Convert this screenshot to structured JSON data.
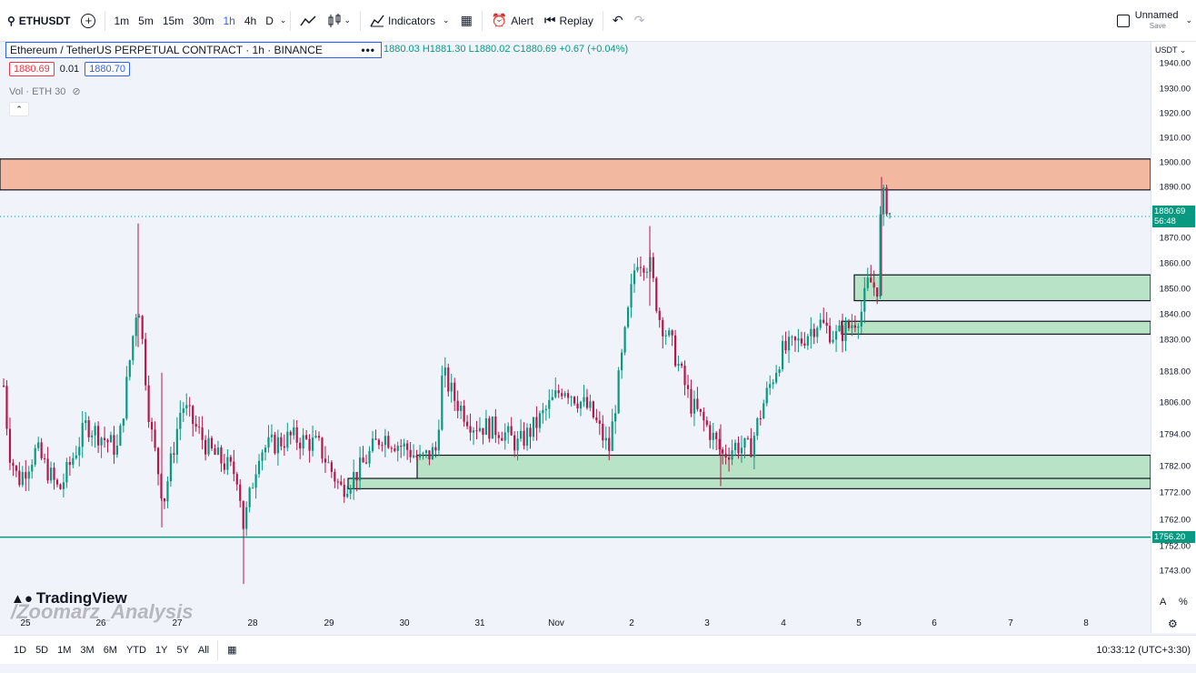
{
  "toolbar": {
    "symbol": "ETHUSDT",
    "intervals": [
      "1m",
      "5m",
      "15m",
      "30m",
      "1h",
      "4h",
      "D"
    ],
    "active_interval": "1h",
    "indicators_label": "Indicators",
    "alert_label": "Alert",
    "replay_label": "Replay",
    "layout_name": "Unnamed",
    "save_label": "Save"
  },
  "legend": {
    "title": "Ethereum / TetherUS PERPETUAL CONTRACT · 1h · BINANCE",
    "ohlc": "1880.03 H1881.30 L1880.02 C1880.69 +0.67 (+0.04%)",
    "bid": "1880.69",
    "spread": "0.01",
    "ask": "1880.70",
    "volume": "Vol · ETH 30"
  },
  "price_axis": {
    "currency": "USDT",
    "ticks": [
      "1940.00",
      "1930.00",
      "1920.00",
      "1910.00",
      "1900.00",
      "1890.00",
      "1870.00",
      "1860.00",
      "1850.00",
      "1840.00",
      "1830.00",
      "1818.00",
      "1806.00",
      "1794.00",
      "1782.00",
      "1772.00",
      "1762.00",
      "1752.00",
      "1743.00"
    ],
    "current_price": "1880.69",
    "countdown": "56:48",
    "line_price": "1756.20"
  },
  "time_axis": {
    "labels": [
      "25",
      "26",
      "27",
      "28",
      "29",
      "30",
      "31",
      "Nov",
      "2",
      "3",
      "4",
      "5",
      "6",
      "7",
      "8"
    ]
  },
  "bottom": {
    "ranges": [
      "1D",
      "5D",
      "1M",
      "3M",
      "6M",
      "YTD",
      "1Y",
      "5Y",
      "All"
    ],
    "clock": "10:33:12 (UTC+3:30)"
  },
  "watermark": {
    "brand": "TradingView",
    "author": "/Zoomarz_Analysis"
  },
  "colors": {
    "up": "#089981",
    "down": "#f23645",
    "supply_zone": "#f2b9a0",
    "demand_zone": "#b9e3c6",
    "support_line": "#089981"
  },
  "chart_data": {
    "type": "candlestick",
    "symbol": "ETHUSDT",
    "timeframe": "1h",
    "ylim": [
      1738,
      1945
    ],
    "x_labels": [
      "25",
      "26",
      "27",
      "28",
      "29",
      "30",
      "31",
      "Nov",
      "2",
      "3",
      "4",
      "5",
      "6",
      "7",
      "8"
    ],
    "zones": [
      {
        "kind": "supply",
        "low": 1891,
        "high": 1903
      },
      {
        "kind": "demand",
        "low": 1848,
        "high": 1858
      },
      {
        "kind": "demand",
        "low": 1835,
        "high": 1840
      },
      {
        "kind": "demand",
        "low": 1778,
        "high": 1788
      },
      {
        "kind": "demand",
        "low": 1775,
        "high": 1779
      }
    ],
    "horizontal_lines": [
      {
        "price": 1756.2
      }
    ],
    "last_close": 1880.69
  }
}
